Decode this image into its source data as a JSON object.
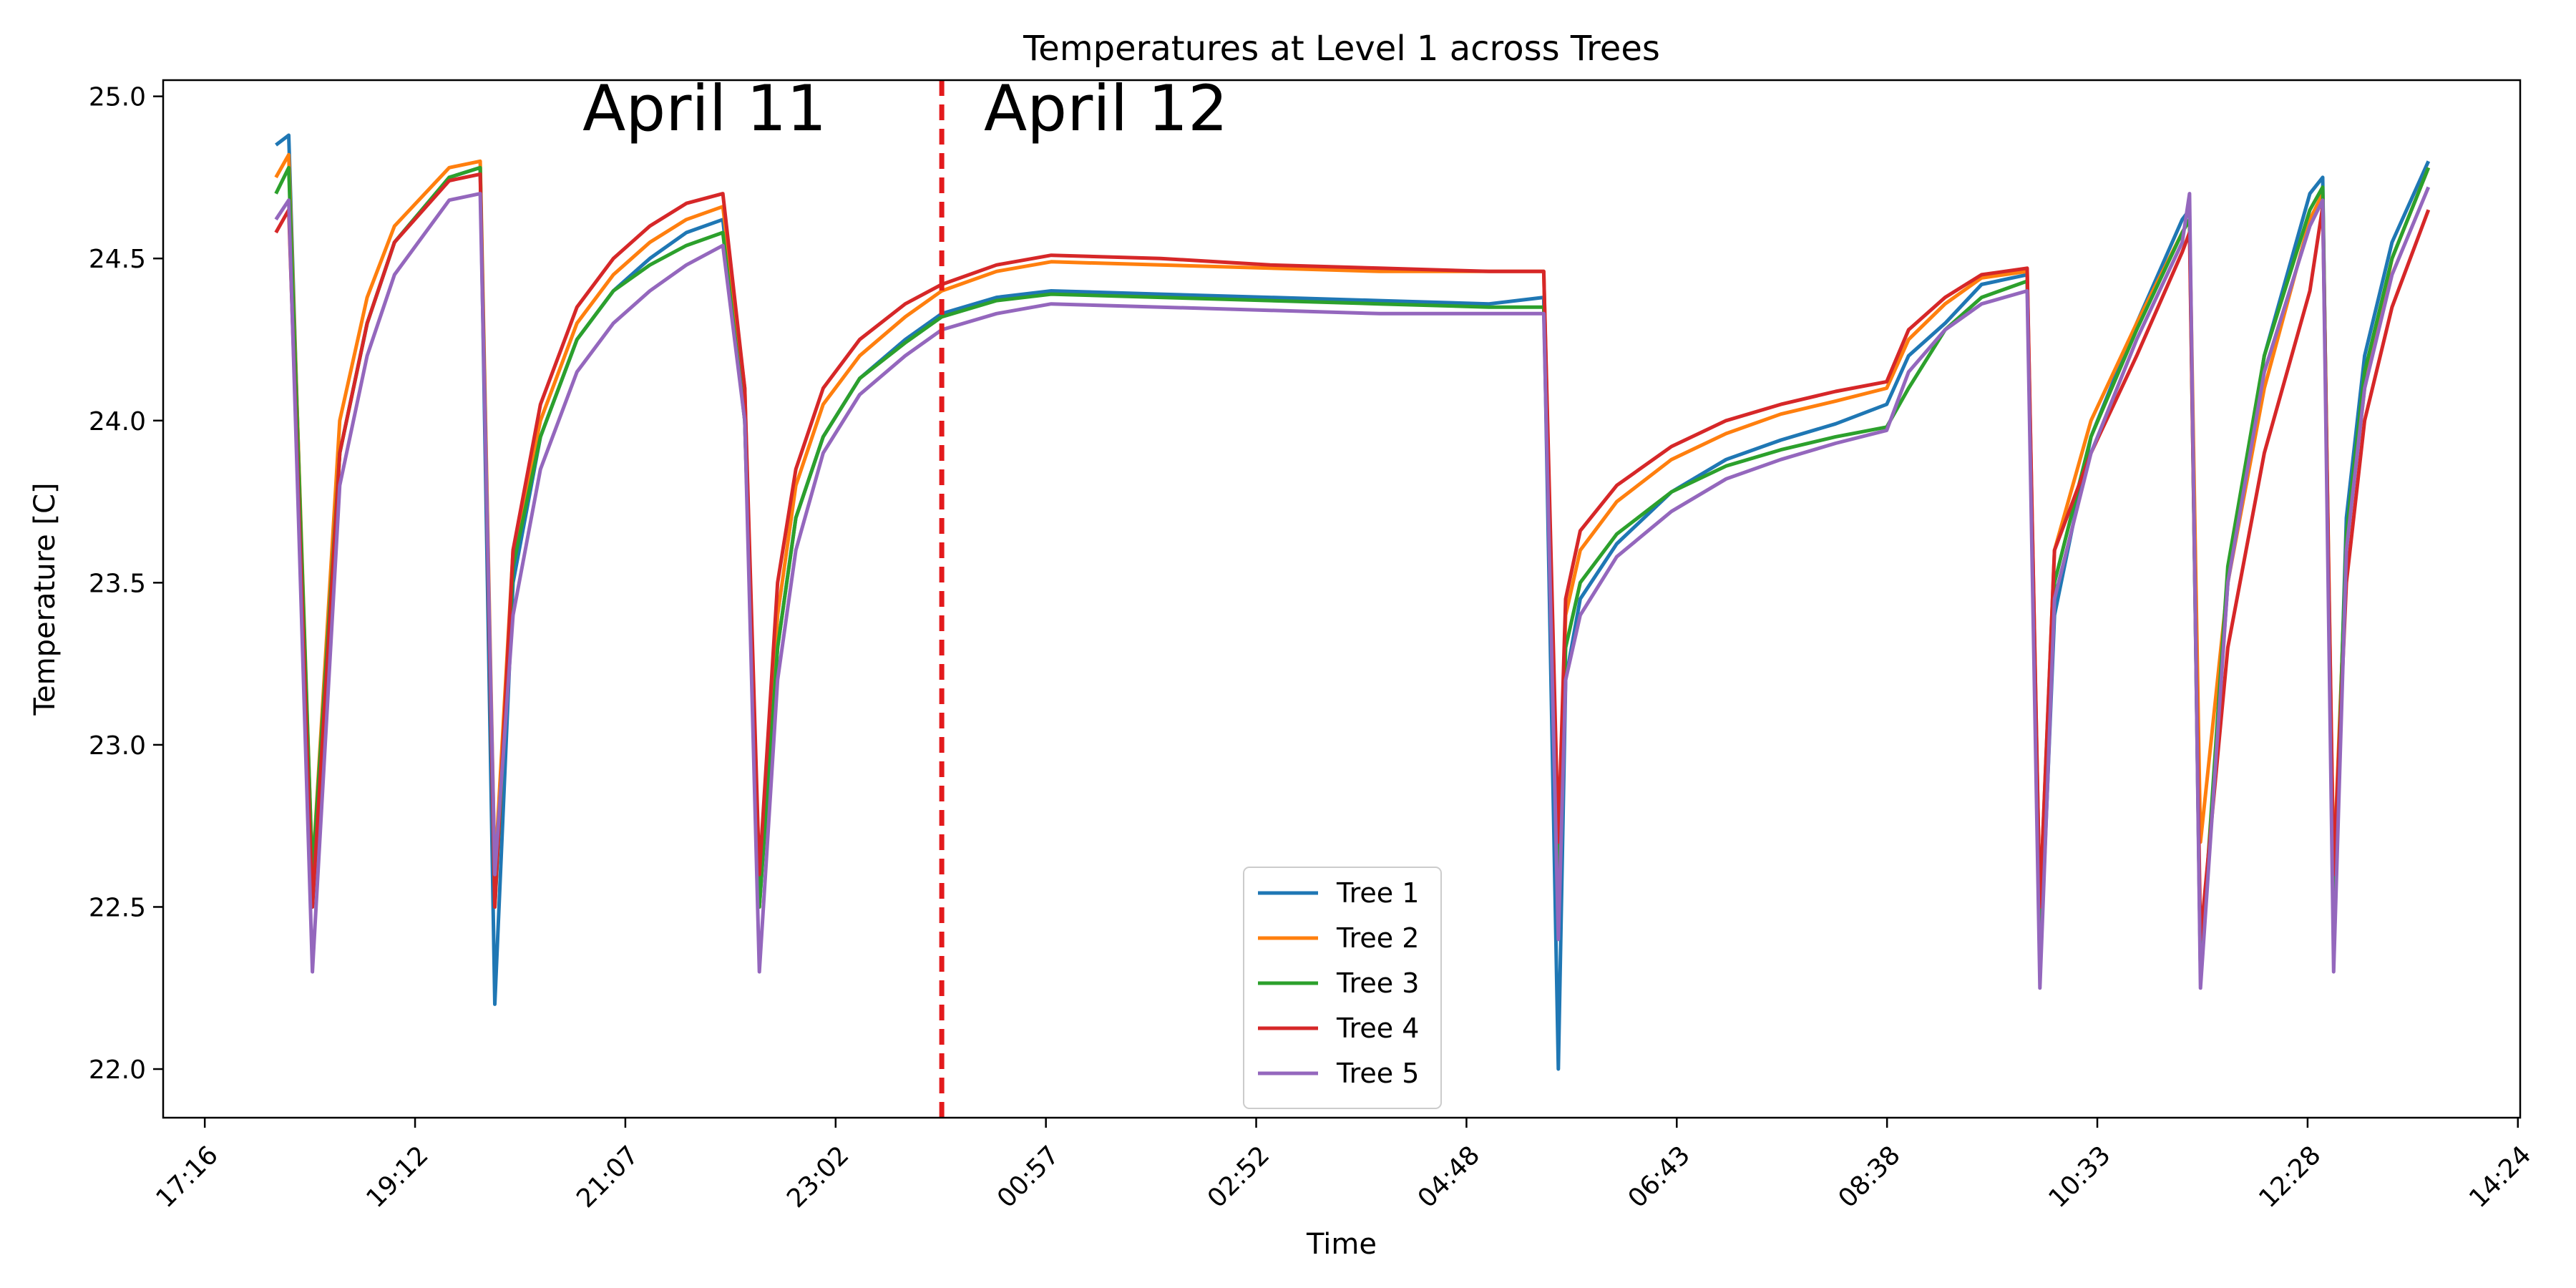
{
  "chart_data": {
    "type": "line",
    "title": "Temperatures at Level 1 across Trees",
    "xlabel": "Time",
    "ylabel": "Temperature [C]",
    "x_unit": "clock time (HH:MM), April 11 17:16 to April 12 14:24",
    "xlim": [
      "17:16",
      "14:24"
    ],
    "ylim": [
      21.85,
      25.05
    ],
    "x_ticks": [
      "17:16",
      "19:12",
      "21:07",
      "23:02",
      "00:57",
      "02:52",
      "04:48",
      "06:43",
      "08:38",
      "10:33",
      "12:28",
      "14:24"
    ],
    "y_ticks": [
      "22.0",
      "22.5",
      "23.0",
      "23.5",
      "24.0",
      "24.5",
      "25.0"
    ],
    "vline": {
      "x": "00:00",
      "color": "#e31a1c",
      "style": "dashed"
    },
    "annotations": [
      {
        "text": "April 11",
        "x": "21:50",
        "y": 24.95
      },
      {
        "text": "April 12",
        "x": "01:30",
        "y": 24.95
      }
    ],
    "legend_position": "lower center",
    "series": [
      {
        "name": "Tree 1",
        "color": "#1f77b4",
        "x": [
          "17:55",
          "18:02",
          "18:15",
          "18:30",
          "18:45",
          "19:00",
          "19:30",
          "19:47",
          "19:55",
          "20:05",
          "20:20",
          "20:40",
          "21:00",
          "21:20",
          "21:40",
          "22:00",
          "22:12",
          "22:20",
          "22:30",
          "22:40",
          "22:55",
          "23:15",
          "23:40",
          "00:00",
          "00:30",
          "01:00",
          "02:00",
          "03:00",
          "04:00",
          "05:00",
          "05:30",
          "05:38",
          "05:42",
          "05:50",
          "06:10",
          "06:40",
          "07:10",
          "07:40",
          "08:10",
          "08:38",
          "08:50",
          "09:10",
          "09:30",
          "09:55",
          "10:02",
          "10:10",
          "10:30",
          "10:55",
          "11:20",
          "11:24",
          "11:30",
          "11:45",
          "12:05",
          "12:30",
          "12:37",
          "12:43",
          "12:50",
          "13:00",
          "13:15",
          "13:35"
        ],
        "y": [
          24.85,
          24.88,
          22.5,
          23.9,
          24.3,
          24.55,
          24.75,
          24.78,
          22.2,
          23.5,
          23.95,
          24.25,
          24.4,
          24.5,
          24.58,
          24.62,
          24.0,
          22.5,
          23.3,
          23.7,
          23.95,
          24.13,
          24.25,
          24.33,
          24.38,
          24.4,
          24.39,
          24.38,
          24.37,
          24.36,
          24.38,
          22.0,
          23.2,
          23.45,
          23.62,
          23.78,
          23.88,
          23.94,
          23.99,
          24.05,
          24.2,
          24.3,
          24.42,
          24.45,
          22.3,
          23.4,
          23.95,
          24.3,
          24.62,
          24.65,
          22.3,
          23.5,
          24.2,
          24.7,
          24.75,
          22.4,
          23.7,
          24.2,
          24.55,
          24.8
        ]
      },
      {
        "name": "Tree 2",
        "color": "#ff7f0e",
        "x": [
          "17:55",
          "18:02",
          "18:15",
          "18:30",
          "18:45",
          "19:00",
          "19:30",
          "19:47",
          "19:55",
          "20:05",
          "20:20",
          "20:40",
          "21:00",
          "21:20",
          "21:40",
          "22:00",
          "22:12",
          "22:20",
          "22:30",
          "22:40",
          "22:55",
          "23:15",
          "23:40",
          "00:00",
          "00:30",
          "01:00",
          "02:00",
          "03:00",
          "04:00",
          "05:00",
          "05:30",
          "05:38",
          "05:42",
          "05:50",
          "06:10",
          "06:40",
          "07:10",
          "07:40",
          "08:10",
          "08:38",
          "08:50",
          "09:10",
          "09:30",
          "09:55",
          "10:02",
          "10:10",
          "10:30",
          "10:55",
          "11:20",
          "11:24",
          "11:30",
          "11:45",
          "12:05",
          "12:30",
          "12:37",
          "12:43",
          "12:50",
          "13:00",
          "13:15",
          "13:35"
        ],
        "y": [
          24.75,
          24.82,
          22.6,
          24.0,
          24.38,
          24.6,
          24.78,
          24.8,
          22.6,
          23.6,
          24.0,
          24.3,
          24.45,
          24.55,
          24.62,
          24.66,
          24.1,
          22.5,
          23.4,
          23.8,
          24.05,
          24.2,
          24.32,
          24.4,
          24.46,
          24.49,
          24.48,
          24.47,
          24.46,
          24.46,
          24.46,
          22.6,
          23.4,
          23.6,
          23.75,
          23.88,
          23.96,
          24.02,
          24.06,
          24.1,
          24.25,
          24.36,
          24.44,
          24.46,
          22.5,
          23.6,
          24.0,
          24.3,
          24.58,
          24.62,
          22.7,
          23.5,
          24.1,
          24.62,
          24.7,
          22.6,
          23.6,
          24.1,
          24.5,
          24.78
        ]
      },
      {
        "name": "Tree 3",
        "color": "#2ca02c",
        "x": [
          "17:55",
          "18:02",
          "18:15",
          "18:30",
          "18:45",
          "19:00",
          "19:30",
          "19:47",
          "19:55",
          "20:05",
          "20:20",
          "20:40",
          "21:00",
          "21:20",
          "21:40",
          "22:00",
          "22:12",
          "22:20",
          "22:30",
          "22:40",
          "22:55",
          "23:15",
          "23:40",
          "00:00",
          "00:30",
          "01:00",
          "02:00",
          "03:00",
          "04:00",
          "05:00",
          "05:30",
          "05:38",
          "05:42",
          "05:50",
          "06:10",
          "06:40",
          "07:10",
          "07:40",
          "08:10",
          "08:38",
          "08:50",
          "09:10",
          "09:30",
          "09:55",
          "10:02",
          "10:10",
          "10:30",
          "10:55",
          "11:20",
          "11:24",
          "11:30",
          "11:45",
          "12:05",
          "12:30",
          "12:37",
          "12:43",
          "12:50",
          "13:00",
          "13:15",
          "13:35"
        ],
        "y": [
          24.7,
          24.78,
          22.6,
          23.9,
          24.3,
          24.55,
          24.75,
          24.78,
          22.5,
          23.55,
          23.95,
          24.25,
          24.4,
          24.48,
          24.54,
          24.58,
          24.0,
          22.5,
          23.3,
          23.7,
          23.95,
          24.13,
          24.24,
          24.32,
          24.37,
          24.39,
          24.38,
          24.37,
          24.36,
          24.35,
          24.35,
          22.5,
          23.3,
          23.5,
          23.65,
          23.78,
          23.86,
          23.91,
          23.95,
          23.98,
          24.1,
          24.28,
          24.38,
          24.43,
          22.4,
          23.5,
          23.95,
          24.28,
          24.58,
          24.62,
          22.3,
          23.55,
          24.2,
          24.65,
          24.72,
          22.5,
          23.65,
          24.15,
          24.5,
          24.78
        ]
      },
      {
        "name": "Tree 4",
        "color": "#d62728",
        "x": [
          "17:55",
          "18:02",
          "18:15",
          "18:30",
          "18:45",
          "19:00",
          "19:30",
          "19:47",
          "19:55",
          "20:05",
          "20:20",
          "20:40",
          "21:00",
          "21:20",
          "21:40",
          "22:00",
          "22:12",
          "22:20",
          "22:30",
          "22:40",
          "22:55",
          "23:15",
          "23:40",
          "00:00",
          "00:30",
          "01:00",
          "02:00",
          "03:00",
          "04:00",
          "05:00",
          "05:30",
          "05:38",
          "05:42",
          "05:50",
          "06:10",
          "06:40",
          "07:10",
          "07:40",
          "08:10",
          "08:38",
          "08:50",
          "09:10",
          "09:30",
          "09:55",
          "10:02",
          "10:10",
          "10:30",
          "10:55",
          "11:20",
          "11:24",
          "11:30",
          "11:45",
          "12:05",
          "12:30",
          "12:37",
          "12:43",
          "12:50",
          "13:00",
          "13:15",
          "13:35"
        ],
        "y": [
          24.58,
          24.65,
          22.5,
          23.9,
          24.3,
          24.55,
          24.74,
          24.76,
          22.5,
          23.6,
          24.05,
          24.35,
          24.5,
          24.6,
          24.67,
          24.7,
          24.1,
          22.6,
          23.5,
          23.85,
          24.1,
          24.25,
          24.36,
          24.42,
          24.48,
          24.51,
          24.5,
          24.48,
          24.47,
          24.46,
          24.46,
          22.7,
          23.45,
          23.66,
          23.8,
          23.92,
          24.0,
          24.05,
          24.09,
          24.12,
          24.28,
          24.38,
          24.45,
          24.47,
          22.5,
          23.6,
          23.9,
          24.2,
          24.52,
          24.58,
          22.4,
          23.3,
          23.9,
          24.4,
          24.66,
          22.6,
          23.5,
          24.0,
          24.35,
          24.65
        ]
      },
      {
        "name": "Tree 5",
        "color": "#9467bd",
        "x": [
          "17:55",
          "18:02",
          "18:15",
          "18:30",
          "18:45",
          "19:00",
          "19:30",
          "19:47",
          "19:55",
          "20:05",
          "20:20",
          "20:40",
          "21:00",
          "21:20",
          "21:40",
          "22:00",
          "22:12",
          "22:20",
          "22:30",
          "22:40",
          "22:55",
          "23:15",
          "23:40",
          "00:00",
          "00:30",
          "01:00",
          "02:00",
          "03:00",
          "04:00",
          "05:00",
          "05:30",
          "05:38",
          "05:42",
          "05:50",
          "06:10",
          "06:40",
          "07:10",
          "07:40",
          "08:10",
          "08:38",
          "08:50",
          "09:10",
          "09:30",
          "09:55",
          "10:02",
          "10:10",
          "10:30",
          "10:55",
          "11:20",
          "11:24",
          "11:30",
          "11:45",
          "12:05",
          "12:30",
          "12:37",
          "12:43",
          "12:50",
          "13:00",
          "13:15",
          "13:35"
        ],
        "y": [
          24.62,
          24.68,
          22.3,
          23.8,
          24.2,
          24.45,
          24.68,
          24.7,
          22.6,
          23.4,
          23.85,
          24.15,
          24.3,
          24.4,
          24.48,
          24.54,
          24.0,
          22.3,
          23.2,
          23.6,
          23.9,
          24.08,
          24.2,
          24.28,
          24.33,
          24.36,
          24.35,
          24.34,
          24.33,
          24.33,
          24.33,
          22.4,
          23.2,
          23.4,
          23.58,
          23.72,
          23.82,
          23.88,
          23.93,
          23.97,
          24.15,
          24.28,
          24.36,
          24.4,
          22.25,
          23.45,
          23.9,
          24.25,
          24.55,
          24.7,
          22.25,
          23.5,
          24.15,
          24.6,
          24.68,
          22.3,
          23.6,
          24.1,
          24.45,
          24.72
        ]
      }
    ]
  }
}
